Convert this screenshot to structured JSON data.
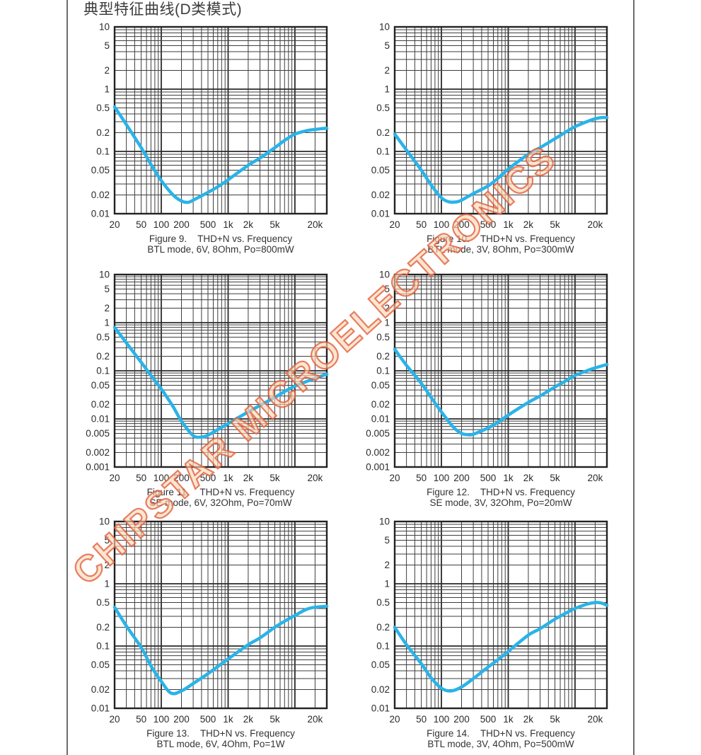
{
  "page": {
    "title": "典型特征曲线(D类模式)",
    "watermark": "CHIPSTAR MICROELECTRONICS"
  },
  "colors": {
    "curve": "#2ab3e8",
    "grid_minor": "#3e3e3e",
    "grid_major": "#2a2a2a",
    "frame": "#222222",
    "text": "#2b2b2b",
    "watermark_stroke": "#e05c3a",
    "watermark_fill": "#fcd6b4",
    "border_line": "#6b6b6b"
  },
  "chart_data": [
    {
      "type": "line",
      "scale": "log-log",
      "grid": true,
      "figure_label": "Figure 9.",
      "title": "THD+N vs. Frequency",
      "conditions": "BTL mode, 6V, 8Ohm, Po=800mW",
      "xlim": [
        20,
        30000
      ],
      "ylim": [
        0.01,
        10
      ],
      "x_tick_values": [
        20,
        50,
        100,
        200,
        500,
        1000,
        2000,
        5000,
        20000
      ],
      "x_tick_labels": [
        "20",
        "50",
        "100",
        "200",
        "500",
        "1k",
        "2k",
        "5k",
        "20k"
      ],
      "y_tick_values": [
        10,
        5,
        2,
        1,
        0.5,
        0.2,
        0.1,
        0.05,
        0.02,
        0.01
      ],
      "series": [
        {
          "name": "THD+N",
          "x": [
            20,
            30,
            50,
            70,
            100,
            150,
            200,
            250,
            300,
            500,
            700,
            1000,
            2000,
            3000,
            5000,
            7000,
            10000,
            15000,
            20000,
            25000,
            30000
          ],
          "y": [
            0.52,
            0.27,
            0.115,
            0.062,
            0.034,
            0.02,
            0.016,
            0.0152,
            0.0165,
            0.022,
            0.027,
            0.035,
            0.06,
            0.078,
            0.115,
            0.15,
            0.19,
            0.215,
            0.225,
            0.232,
            0.235
          ]
        }
      ]
    },
    {
      "type": "line",
      "scale": "log-log",
      "grid": true,
      "figure_label": "Figure 10.",
      "title": "THD+N vs. Frequency",
      "conditions": "BTL mode, 3V, 8Ohm, Po=300mW",
      "xlim": [
        20,
        30000
      ],
      "ylim": [
        0.01,
        10
      ],
      "x_tick_values": [
        20,
        50,
        100,
        200,
        500,
        1000,
        2000,
        5000,
        20000
      ],
      "x_tick_labels": [
        "20",
        "50",
        "100",
        "200",
        "500",
        "1k",
        "2k",
        "5k",
        "20k"
      ],
      "y_tick_values": [
        10,
        5,
        2,
        1,
        0.5,
        0.2,
        0.1,
        0.05,
        0.02,
        0.01
      ],
      "series": [
        {
          "name": "THD+N",
          "x": [
            20,
            30,
            50,
            70,
            100,
            130,
            170,
            200,
            300,
            500,
            700,
            1000,
            2000,
            3000,
            5000,
            7000,
            10000,
            15000,
            20000,
            25000,
            30000
          ],
          "y": [
            0.19,
            0.105,
            0.05,
            0.029,
            0.018,
            0.0155,
            0.0155,
            0.0165,
            0.021,
            0.028,
            0.037,
            0.052,
            0.09,
            0.115,
            0.16,
            0.2,
            0.25,
            0.3,
            0.335,
            0.35,
            0.35
          ]
        }
      ]
    },
    {
      "type": "line",
      "scale": "log-log",
      "grid": true,
      "figure_label": "Figure 11.",
      "title": "THD+N vs. Frequency",
      "conditions": "SE mode, 6V, 32Ohm, Po=70mW",
      "xlim": [
        20,
        30000
      ],
      "ylim": [
        0.001,
        10
      ],
      "x_tick_values": [
        20,
        50,
        100,
        200,
        500,
        1000,
        2000,
        5000,
        20000
      ],
      "x_tick_labels": [
        "20",
        "50",
        "100",
        "200",
        "500",
        "1k",
        "2k",
        "5k",
        "20k"
      ],
      "y_tick_values": [
        10,
        5,
        2,
        1,
        0.5,
        0.2,
        0.1,
        0.05,
        0.02,
        0.01,
        0.005,
        0.002,
        0.001
      ],
      "series": [
        {
          "name": "THD+N",
          "x": [
            20,
            30,
            50,
            70,
            100,
            150,
            200,
            300,
            400,
            500,
            700,
            1000,
            2000,
            3000,
            5000,
            7000,
            10000,
            15000,
            20000,
            30000
          ],
          "y": [
            0.8,
            0.38,
            0.15,
            0.08,
            0.042,
            0.018,
            0.009,
            0.0045,
            0.0042,
            0.0046,
            0.006,
            0.008,
            0.014,
            0.019,
            0.028,
            0.037,
            0.048,
            0.06,
            0.07,
            0.085
          ]
        }
      ]
    },
    {
      "type": "line",
      "scale": "log-log",
      "grid": true,
      "figure_label": "Figure 12.",
      "title": "THD+N vs. Frequency",
      "conditions": "SE mode, 3V, 32Ohm, Po=20mW",
      "xlim": [
        20,
        30000
      ],
      "ylim": [
        0.001,
        10
      ],
      "x_tick_values": [
        20,
        50,
        100,
        200,
        500,
        1000,
        2000,
        5000,
        20000
      ],
      "x_tick_labels": [
        "20",
        "50",
        "100",
        "200",
        "500",
        "1k",
        "2k",
        "5k",
        "20k"
      ],
      "y_tick_values": [
        10,
        5,
        2,
        1,
        0.5,
        0.2,
        0.1,
        0.05,
        0.02,
        0.01,
        0.005,
        0.002,
        0.001
      ],
      "series": [
        {
          "name": "THD+N",
          "x": [
            20,
            30,
            50,
            70,
            100,
            150,
            200,
            250,
            300,
            500,
            700,
            1000,
            2000,
            3000,
            5000,
            7000,
            10000,
            15000,
            20000,
            30000
          ],
          "y": [
            0.28,
            0.13,
            0.055,
            0.028,
            0.014,
            0.0068,
            0.005,
            0.0047,
            0.0048,
            0.0065,
            0.0085,
            0.012,
            0.022,
            0.03,
            0.046,
            0.06,
            0.08,
            0.1,
            0.115,
            0.135
          ]
        }
      ]
    },
    {
      "type": "line",
      "scale": "log-log",
      "grid": true,
      "figure_label": "Figure 13.",
      "title": "THD+N vs. Frequency",
      "conditions": "BTL mode, 6V, 4Ohm, Po=1W",
      "xlim": [
        20,
        30000
      ],
      "ylim": [
        0.01,
        10
      ],
      "x_tick_values": [
        20,
        50,
        100,
        200,
        500,
        1000,
        2000,
        5000,
        20000
      ],
      "x_tick_labels": [
        "20",
        "50",
        "100",
        "200",
        "500",
        "1k",
        "2k",
        "5k",
        "20k"
      ],
      "y_tick_values": [
        10,
        5,
        2,
        1,
        0.5,
        0.2,
        0.1,
        0.05,
        0.02,
        0.01
      ],
      "series": [
        {
          "name": "THD+N",
          "x": [
            20,
            30,
            50,
            70,
            100,
            140,
            200,
            300,
            500,
            700,
            1000,
            2000,
            3000,
            5000,
            7000,
            10000,
            15000,
            20000,
            30000
          ],
          "y": [
            0.42,
            0.21,
            0.095,
            0.048,
            0.027,
            0.0175,
            0.019,
            0.025,
            0.036,
            0.047,
            0.062,
            0.105,
            0.135,
            0.2,
            0.25,
            0.31,
            0.39,
            0.42,
            0.435
          ]
        }
      ]
    },
    {
      "type": "line",
      "scale": "log-log",
      "grid": true,
      "figure_label": "Figure 14.",
      "title": "THD+N vs. Frequency",
      "conditions": "BTL mode, 3V, 4Ohm, Po=500mW",
      "xlim": [
        20,
        30000
      ],
      "ylim": [
        0.01,
        10
      ],
      "x_tick_values": [
        20,
        50,
        100,
        200,
        500,
        1000,
        2000,
        5000,
        20000
      ],
      "x_tick_labels": [
        "20",
        "50",
        "100",
        "200",
        "500",
        "1k",
        "2k",
        "5k",
        "20k"
      ],
      "y_tick_values": [
        10,
        5,
        2,
        1,
        0.5,
        0.2,
        0.1,
        0.05,
        0.02,
        0.01
      ],
      "series": [
        {
          "name": "THD+N",
          "x": [
            20,
            30,
            50,
            70,
            100,
            140,
            200,
            300,
            500,
            700,
            1000,
            2000,
            3000,
            5000,
            7000,
            10000,
            15000,
            20000,
            25000,
            30000
          ],
          "y": [
            0.2,
            0.105,
            0.052,
            0.031,
            0.021,
            0.019,
            0.022,
            0.03,
            0.046,
            0.06,
            0.082,
            0.15,
            0.19,
            0.27,
            0.33,
            0.4,
            0.47,
            0.5,
            0.49,
            0.45
          ]
        }
      ]
    }
  ]
}
